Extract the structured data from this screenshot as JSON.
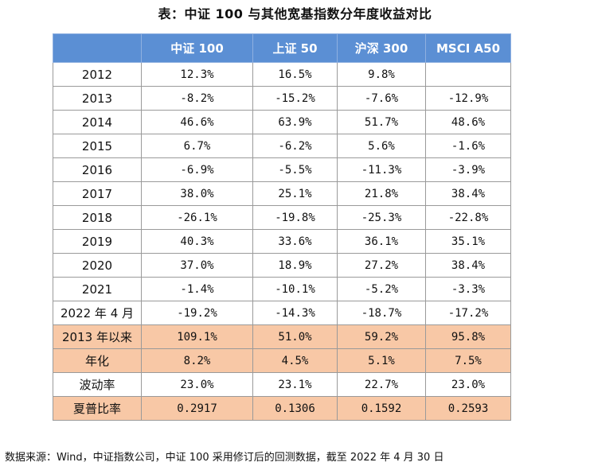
{
  "title": "表：中证 100 与其他宽基指数分年度收益对比",
  "table": {
    "headers": [
      "",
      "中证 100",
      "上证 50",
      "沪深 300",
      "MSCI A50"
    ],
    "rows": [
      {
        "label": "2012",
        "values": [
          "12.3%",
          "16.5%",
          "9.8%",
          ""
        ],
        "highlight": false
      },
      {
        "label": "2013",
        "values": [
          "-8.2%",
          "-15.2%",
          "-7.6%",
          "-12.9%"
        ],
        "highlight": false
      },
      {
        "label": "2014",
        "values": [
          "46.6%",
          "63.9%",
          "51.7%",
          "48.6%"
        ],
        "highlight": false
      },
      {
        "label": "2015",
        "values": [
          "6.7%",
          "-6.2%",
          "5.6%",
          "-1.6%"
        ],
        "highlight": false
      },
      {
        "label": "2016",
        "values": [
          "-6.9%",
          "-5.5%",
          "-11.3%",
          "-3.9%"
        ],
        "highlight": false
      },
      {
        "label": "2017",
        "values": [
          "38.0%",
          "25.1%",
          "21.8%",
          "38.4%"
        ],
        "highlight": false
      },
      {
        "label": "2018",
        "values": [
          "-26.1%",
          "-19.8%",
          "-25.3%",
          "-22.8%"
        ],
        "highlight": false
      },
      {
        "label": "2019",
        "values": [
          "40.3%",
          "33.6%",
          "36.1%",
          "35.1%"
        ],
        "highlight": false
      },
      {
        "label": "2020",
        "values": [
          "37.0%",
          "18.9%",
          "27.2%",
          "38.4%"
        ],
        "highlight": false
      },
      {
        "label": "2021",
        "values": [
          "-1.4%",
          "-10.1%",
          "-5.2%",
          "-3.3%"
        ],
        "highlight": false
      },
      {
        "label": "2022 年 4 月",
        "values": [
          "-19.2%",
          "-14.3%",
          "-18.7%",
          "-17.2%"
        ],
        "highlight": false
      },
      {
        "label": "2013 年以来",
        "values": [
          "109.1%",
          "51.0%",
          "59.2%",
          "95.8%"
        ],
        "highlight": true
      },
      {
        "label": "年化",
        "values": [
          "8.2%",
          "4.5%",
          "5.1%",
          "7.5%"
        ],
        "highlight": true
      },
      {
        "label": "波动率",
        "values": [
          "23.0%",
          "23.1%",
          "22.7%",
          "23.0%"
        ],
        "highlight": false
      },
      {
        "label": "夏普比率",
        "values": [
          "0.2917",
          "0.1306",
          "0.1592",
          "0.2593"
        ],
        "highlight": true
      }
    ]
  },
  "source": "数据来源：Wind，中证指数公司，中证 100 采用修订后的回测数据，截至 2022 年 4 月 30 日",
  "colors": {
    "header_bg": "#5b8fd4",
    "highlight_bg": "#f8c8a6"
  }
}
